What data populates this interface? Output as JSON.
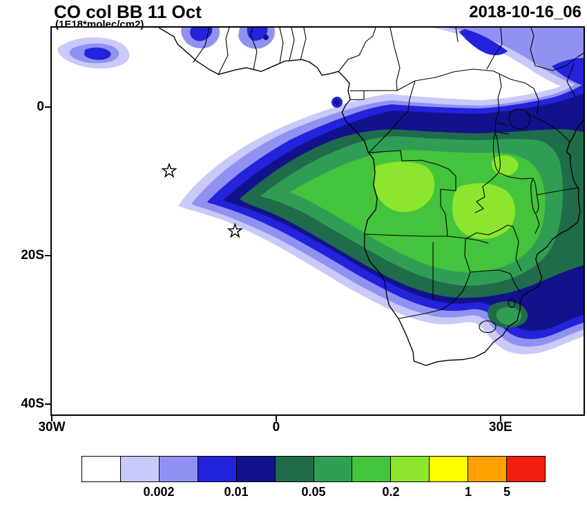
{
  "header": {
    "title": "CO col BB 11 Oct",
    "subtitle": "(1E18*molec/cm2)",
    "date_label": "2018-10-16_06"
  },
  "chart_data": {
    "type": "heatmap",
    "title": "CO col BB 11 Oct",
    "units_label": "(1E18*molec/cm2)",
    "timestamp_label": "2018-10-16_06",
    "extent": {
      "lon": [
        -30,
        41.1
      ],
      "lat": [
        10.7,
        -41.4
      ]
    },
    "xticks": [
      {
        "label": "30W",
        "lon": -30
      },
      {
        "label": "0",
        "lon": 0
      },
      {
        "label": "30E",
        "lon": 30
      }
    ],
    "yticks": [
      {
        "label": "0",
        "lat": 0
      },
      {
        "label": "20S",
        "lat": -20
      },
      {
        "label": "40S",
        "lat": -40
      }
    ],
    "colorbar": {
      "colors": [
        "#ffffff",
        "#c9c9fa",
        "#9191f2",
        "#2323dc",
        "#12128c",
        "#1f6b4a",
        "#2f9e54",
        "#44c33c",
        "#8ce62e",
        "#ffff00",
        "#ffa000",
        "#f01e0f"
      ],
      "tick_labels": [
        {
          "label": "0.002",
          "boundary": 2
        },
        {
          "label": "0.01",
          "boundary": 4
        },
        {
          "label": "0.05",
          "boundary": 6
        },
        {
          "label": "0.2",
          "boundary": 8
        },
        {
          "label": "1",
          "boundary": 10
        },
        {
          "label": "5",
          "boundary": 11
        }
      ]
    },
    "markers": [
      {
        "type": "star",
        "lon": -14.3,
        "lat": -8.6
      },
      {
        "type": "star",
        "lon": -5.5,
        "lat": -16.7
      }
    ]
  }
}
